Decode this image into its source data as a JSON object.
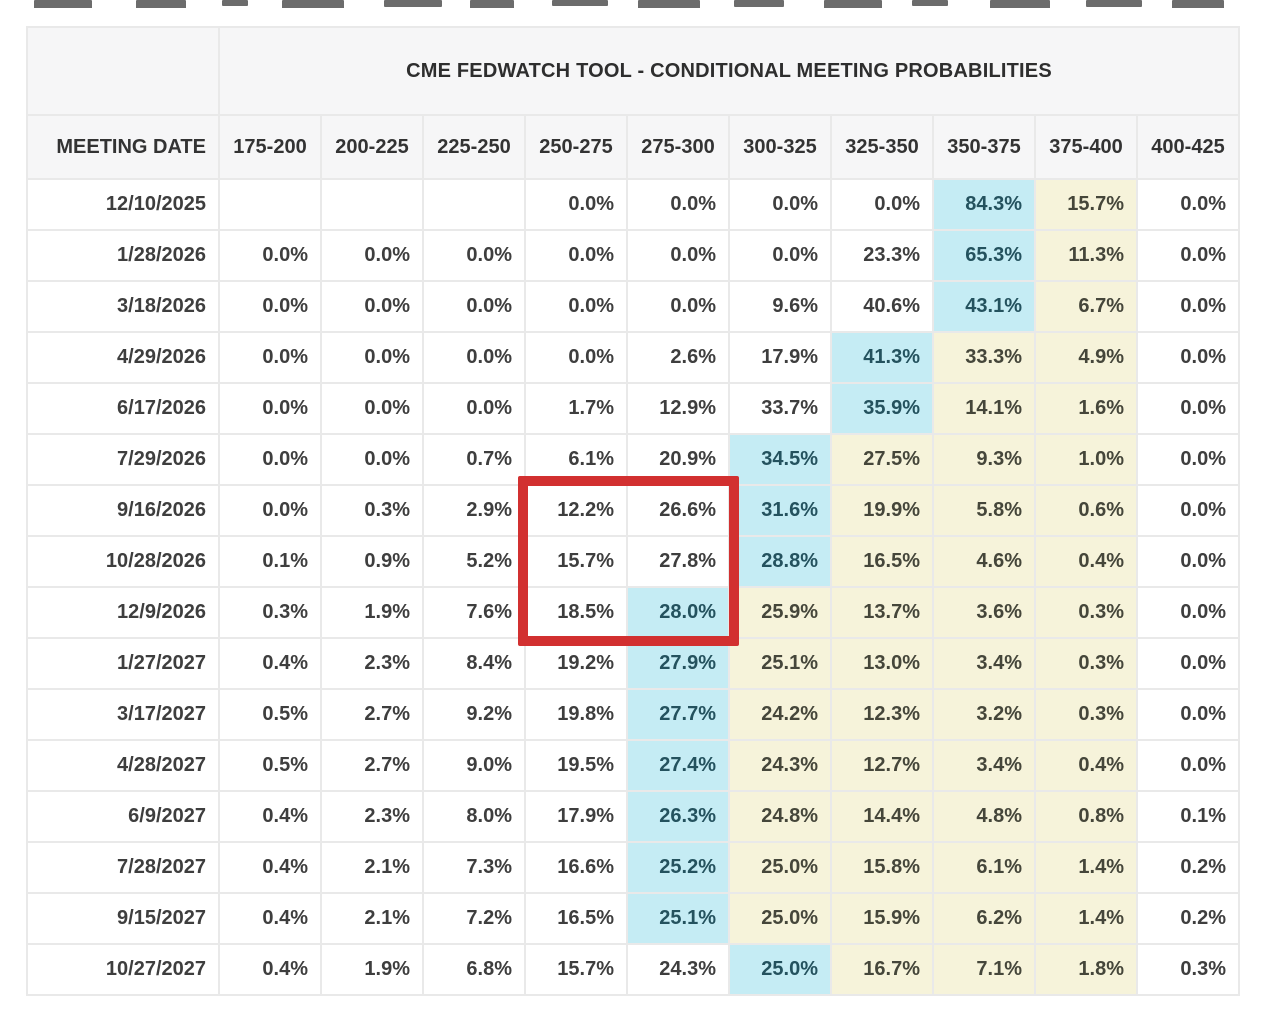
{
  "chart_data": {
    "type": "table",
    "title": "CME FEDWATCH TOOL - CONDITIONAL MEETING PROBABILITIES",
    "corner_label": "",
    "columns": [
      "MEETING DATE",
      "175-200",
      "200-225",
      "225-250",
      "250-275",
      "275-300",
      "300-325",
      "325-350",
      "350-375",
      "375-400",
      "400-425"
    ],
    "rows": [
      {
        "date": "12/10/2025",
        "values": [
          "",
          "",
          "",
          "0.0%",
          "0.0%",
          "0.0%",
          "0.0%",
          "84.3%",
          "15.7%",
          "0.0%"
        ],
        "bg": "wwwwwwwcyw"
      },
      {
        "date": "1/28/2026",
        "values": [
          "0.0%",
          "0.0%",
          "0.0%",
          "0.0%",
          "0.0%",
          "0.0%",
          "23.3%",
          "65.3%",
          "11.3%",
          "0.0%"
        ],
        "bg": "wwwwwwwcyw"
      },
      {
        "date": "3/18/2026",
        "values": [
          "0.0%",
          "0.0%",
          "0.0%",
          "0.0%",
          "0.0%",
          "9.6%",
          "40.6%",
          "43.1%",
          "6.7%",
          "0.0%"
        ],
        "bg": "wwwwwwwcyw"
      },
      {
        "date": "4/29/2026",
        "values": [
          "0.0%",
          "0.0%",
          "0.0%",
          "0.0%",
          "2.6%",
          "17.9%",
          "41.3%",
          "33.3%",
          "4.9%",
          "0.0%"
        ],
        "bg": "wwwwwwcyyw"
      },
      {
        "date": "6/17/2026",
        "values": [
          "0.0%",
          "0.0%",
          "0.0%",
          "1.7%",
          "12.9%",
          "33.7%",
          "35.9%",
          "14.1%",
          "1.6%",
          "0.0%"
        ],
        "bg": "wwwwwwcyyw"
      },
      {
        "date": "7/29/2026",
        "values": [
          "0.0%",
          "0.0%",
          "0.7%",
          "6.1%",
          "20.9%",
          "34.5%",
          "27.5%",
          "9.3%",
          "1.0%",
          "0.0%"
        ],
        "bg": "wwwwwcyyyw"
      },
      {
        "date": "9/16/2026",
        "values": [
          "0.0%",
          "0.3%",
          "2.9%",
          "12.2%",
          "26.6%",
          "31.6%",
          "19.9%",
          "5.8%",
          "0.6%",
          "0.0%"
        ],
        "bg": "wwwwwcyyyw"
      },
      {
        "date": "10/28/2026",
        "values": [
          "0.1%",
          "0.9%",
          "5.2%",
          "15.7%",
          "27.8%",
          "28.8%",
          "16.5%",
          "4.6%",
          "0.4%",
          "0.0%"
        ],
        "bg": "wwwwwcyyyw"
      },
      {
        "date": "12/9/2026",
        "values": [
          "0.3%",
          "1.9%",
          "7.6%",
          "18.5%",
          "28.0%",
          "25.9%",
          "13.7%",
          "3.6%",
          "0.3%",
          "0.0%"
        ],
        "bg": "wwwwcyyyyw"
      },
      {
        "date": "1/27/2027",
        "values": [
          "0.4%",
          "2.3%",
          "8.4%",
          "19.2%",
          "27.9%",
          "25.1%",
          "13.0%",
          "3.4%",
          "0.3%",
          "0.0%"
        ],
        "bg": "wwwwcyyyyw"
      },
      {
        "date": "3/17/2027",
        "values": [
          "0.5%",
          "2.7%",
          "9.2%",
          "19.8%",
          "27.7%",
          "24.2%",
          "12.3%",
          "3.2%",
          "0.3%",
          "0.0%"
        ],
        "bg": "wwwwcyyyyw"
      },
      {
        "date": "4/28/2027",
        "values": [
          "0.5%",
          "2.7%",
          "9.0%",
          "19.5%",
          "27.4%",
          "24.3%",
          "12.7%",
          "3.4%",
          "0.4%",
          "0.0%"
        ],
        "bg": "wwwwcyyyyw"
      },
      {
        "date": "6/9/2027",
        "values": [
          "0.4%",
          "2.3%",
          "8.0%",
          "17.9%",
          "26.3%",
          "24.8%",
          "14.4%",
          "4.8%",
          "0.8%",
          "0.1%"
        ],
        "bg": "wwwwcyyyyw"
      },
      {
        "date": "7/28/2027",
        "values": [
          "0.4%",
          "2.1%",
          "7.3%",
          "16.6%",
          "25.2%",
          "25.0%",
          "15.8%",
          "6.1%",
          "1.4%",
          "0.2%"
        ],
        "bg": "wwwwcyyyyw"
      },
      {
        "date": "9/15/2027",
        "values": [
          "0.4%",
          "2.1%",
          "7.2%",
          "16.5%",
          "25.1%",
          "25.0%",
          "15.9%",
          "6.2%",
          "1.4%",
          "0.2%"
        ],
        "bg": "wwwwcyyyyw"
      },
      {
        "date": "10/27/2027",
        "values": [
          "0.4%",
          "1.9%",
          "6.8%",
          "15.7%",
          "24.3%",
          "25.0%",
          "16.7%",
          "7.1%",
          "1.8%",
          "0.3%"
        ],
        "bg": "wwwwwcyyyw"
      }
    ],
    "highlight_legend": {
      "c": "cyan highlight (highest probability bucket)",
      "y": "yellow highlight",
      "w": "no highlight"
    },
    "colors": {
      "cyan": "#c5ecf4",
      "yellow": "#f6f3da",
      "header_bg": "#f6f6f7",
      "grid_line": "#e9e9e9",
      "red_box": "#d23030",
      "text": "#3e3e3e"
    },
    "red_box": {
      "first_row_date": "9/16/2026",
      "last_row_date": "12/9/2026",
      "first_col": "250-275",
      "last_col": "275-300"
    },
    "layout": {
      "grid_on": true,
      "title_position": "top-center-over-probability-columns"
    }
  }
}
